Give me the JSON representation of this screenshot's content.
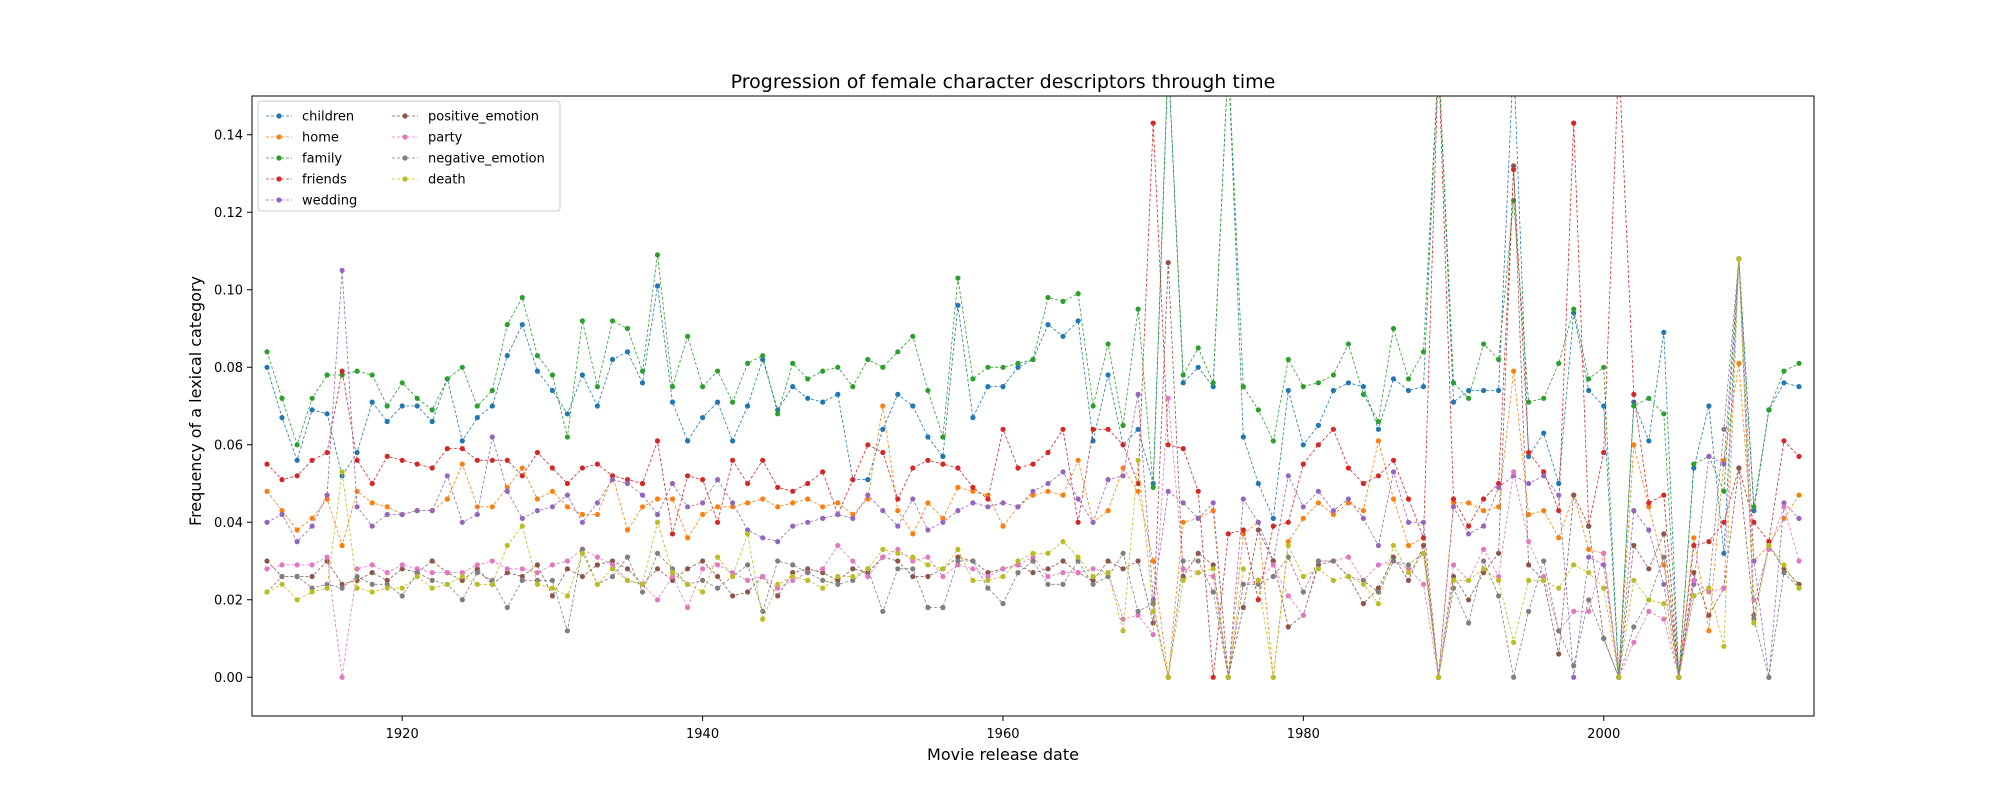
{
  "chart_data": {
    "type": "line",
    "title": "Progression of female character descriptors through time",
    "xlabel": "Movie release date",
    "ylabel": "Frequency of a lexical category",
    "xlim": [
      1910,
      2014
    ],
    "ylim": [
      -0.01,
      0.15
    ],
    "xticks": [
      1920,
      1940,
      1960,
      1980,
      2000
    ],
    "yticks": [
      0.0,
      0.02,
      0.04,
      0.06,
      0.08,
      0.1,
      0.12,
      0.14
    ],
    "ytick_labels": [
      "0.00",
      "0.02",
      "0.04",
      "0.06",
      "0.08",
      "0.10",
      "0.12",
      "0.14"
    ],
    "grid": false,
    "legend_position": "upper-left",
    "x": [
      1911,
      1912,
      1913,
      1914,
      1915,
      1916,
      1917,
      1918,
      1919,
      1920,
      1921,
      1922,
      1923,
      1924,
      1925,
      1926,
      1927,
      1928,
      1929,
      1930,
      1931,
      1932,
      1933,
      1934,
      1935,
      1936,
      1937,
      1938,
      1939,
      1940,
      1941,
      1942,
      1943,
      1944,
      1945,
      1946,
      1947,
      1948,
      1949,
      1950,
      1951,
      1952,
      1953,
      1954,
      1955,
      1956,
      1957,
      1958,
      1959,
      1960,
      1961,
      1962,
      1963,
      1964,
      1965,
      1966,
      1967,
      1968,
      1969,
      1970,
      1971,
      1972,
      1973,
      1974,
      1975,
      1976,
      1977,
      1978,
      1979,
      1980,
      1981,
      1982,
      1983,
      1984,
      1985,
      1986,
      1987,
      1988,
      1989,
      1990,
      1991,
      1992,
      1993,
      1994,
      1995,
      1996,
      1997,
      1998,
      1999,
      2000,
      2001,
      2002,
      2003,
      2004,
      2005,
      2006,
      2007,
      2008,
      2009,
      2010,
      2011,
      2012,
      2013
    ],
    "series": [
      {
        "name": "children",
        "color": "#1f77b4",
        "values": [
          0.08,
          0.067,
          0.056,
          0.069,
          0.068,
          0.052,
          0.058,
          0.071,
          0.066,
          0.07,
          0.07,
          0.066,
          0.077,
          0.061,
          0.067,
          0.07,
          0.083,
          0.091,
          0.079,
          0.074,
          0.068,
          0.078,
          0.07,
          0.082,
          0.084,
          0.076,
          0.101,
          0.071,
          0.061,
          0.067,
          0.071,
          0.061,
          0.07,
          0.082,
          0.069,
          0.075,
          0.072,
          0.071,
          0.073,
          0.051,
          0.051,
          0.064,
          0.073,
          0.07,
          0.062,
          0.057,
          0.096,
          0.067,
          0.075,
          0.075,
          0.08,
          0.082,
          0.091,
          0.088,
          0.092,
          0.061,
          0.078,
          0.06,
          0.064,
          0.05,
          0.16,
          0.076,
          0.08,
          0.075,
          0.16,
          0.062,
          0.05,
          0.041,
          0.074,
          0.06,
          0.065,
          0.074,
          0.076,
          0.075,
          0.064,
          0.077,
          0.074,
          0.075,
          0.16,
          0.071,
          0.074,
          0.074,
          0.074,
          0.16,
          0.057,
          0.063,
          0.05,
          0.094,
          0.074,
          0.07,
          0.0,
          0.071,
          0.061,
          0.089,
          0.0,
          0.054,
          0.07,
          0.032,
          0.108,
          0.043,
          0.069,
          0.076,
          0.075
        ]
      },
      {
        "name": "home",
        "color": "#ff7f0e",
        "values": [
          0.048,
          0.043,
          0.038,
          0.041,
          0.046,
          0.034,
          0.048,
          0.045,
          0.044,
          0.042,
          0.043,
          0.043,
          0.046,
          0.055,
          0.044,
          0.044,
          0.049,
          0.054,
          0.046,
          0.048,
          0.044,
          0.042,
          0.042,
          0.052,
          0.038,
          0.044,
          0.046,
          0.046,
          0.036,
          0.042,
          0.044,
          0.044,
          0.045,
          0.046,
          0.044,
          0.045,
          0.046,
          0.044,
          0.045,
          0.042,
          0.046,
          0.07,
          0.043,
          0.037,
          0.045,
          0.041,
          0.049,
          0.048,
          0.047,
          0.039,
          0.044,
          0.047,
          0.048,
          0.047,
          0.056,
          0.04,
          0.043,
          0.054,
          0.048,
          0.03,
          0.0,
          0.04,
          0.041,
          0.043,
          0.0,
          0.037,
          0.04,
          0.0,
          0.035,
          0.041,
          0.045,
          0.042,
          0.045,
          0.043,
          0.061,
          0.046,
          0.034,
          0.036,
          0.0,
          0.045,
          0.045,
          0.043,
          0.044,
          0.079,
          0.042,
          0.043,
          0.036,
          0.047,
          0.033,
          0.032,
          0.0,
          0.06,
          0.044,
          0.029,
          0.0,
          0.036,
          0.012,
          0.056,
          0.081,
          0.03,
          0.034,
          0.041,
          0.047
        ]
      },
      {
        "name": "family",
        "color": "#2ca02c",
        "values": [
          0.084,
          0.072,
          0.06,
          0.072,
          0.078,
          0.078,
          0.079,
          0.078,
          0.07,
          0.076,
          0.072,
          0.069,
          0.077,
          0.08,
          0.07,
          0.074,
          0.091,
          0.098,
          0.083,
          0.078,
          0.062,
          0.092,
          0.075,
          0.092,
          0.09,
          0.079,
          0.109,
          0.075,
          0.088,
          0.075,
          0.079,
          0.071,
          0.081,
          0.083,
          0.068,
          0.081,
          0.077,
          0.079,
          0.08,
          0.075,
          0.082,
          0.08,
          0.084,
          0.088,
          0.074,
          0.062,
          0.103,
          0.077,
          0.08,
          0.08,
          0.081,
          0.082,
          0.098,
          0.097,
          0.099,
          0.07,
          0.086,
          0.065,
          0.095,
          0.049,
          0.16,
          0.078,
          0.085,
          0.076,
          0.16,
          0.075,
          0.069,
          0.061,
          0.082,
          0.075,
          0.076,
          0.078,
          0.086,
          0.073,
          0.066,
          0.09,
          0.077,
          0.084,
          0.16,
          0.076,
          0.072,
          0.086,
          0.082,
          0.123,
          0.071,
          0.072,
          0.081,
          0.095,
          0.077,
          0.08,
          0.0,
          0.07,
          0.072,
          0.068,
          0.0,
          0.055,
          0.057,
          0.048,
          0.108,
          0.044,
          0.069,
          0.079,
          0.081
        ]
      },
      {
        "name": "friends",
        "color": "#d62728",
        "values": [
          0.055,
          0.051,
          0.052,
          0.056,
          0.058,
          0.079,
          0.056,
          0.05,
          0.057,
          0.056,
          0.055,
          0.054,
          0.059,
          0.059,
          0.056,
          0.056,
          0.056,
          0.052,
          0.058,
          0.054,
          0.05,
          0.054,
          0.055,
          0.052,
          0.051,
          0.05,
          0.061,
          0.037,
          0.052,
          0.051,
          0.04,
          0.056,
          0.05,
          0.056,
          0.049,
          0.048,
          0.05,
          0.053,
          0.042,
          0.051,
          0.06,
          0.058,
          0.046,
          0.054,
          0.056,
          0.055,
          0.054,
          0.049,
          0.046,
          0.064,
          0.054,
          0.055,
          0.058,
          0.064,
          0.04,
          0.064,
          0.064,
          0.06,
          0.05,
          0.143,
          0.06,
          0.059,
          0.048,
          0.0,
          0.037,
          0.038,
          0.02,
          0.039,
          0.04,
          0.055,
          0.06,
          0.064,
          0.054,
          0.05,
          0.052,
          0.056,
          0.046,
          0.036,
          0.16,
          0.046,
          0.039,
          0.046,
          0.05,
          0.131,
          0.058,
          0.053,
          0.043,
          0.143,
          0.039,
          0.058,
          0.16,
          0.073,
          0.045,
          0.047,
          0.0,
          0.034,
          0.035,
          0.04,
          0.054,
          0.04,
          0.035,
          0.061,
          0.057
        ]
      },
      {
        "name": "wedding",
        "color": "#9467bd",
        "values": [
          0.04,
          0.042,
          0.035,
          0.039,
          0.047,
          0.105,
          0.044,
          0.039,
          0.042,
          0.042,
          0.043,
          0.043,
          0.052,
          0.04,
          0.042,
          0.062,
          0.048,
          0.041,
          0.043,
          0.044,
          0.047,
          0.04,
          0.045,
          0.051,
          0.05,
          0.047,
          0.042,
          0.05,
          0.044,
          0.045,
          0.051,
          0.045,
          0.038,
          0.036,
          0.035,
          0.039,
          0.04,
          0.041,
          0.042,
          0.041,
          0.047,
          0.043,
          0.039,
          0.046,
          0.038,
          0.04,
          0.043,
          0.045,
          0.044,
          0.045,
          0.044,
          0.048,
          0.05,
          0.053,
          0.046,
          0.04,
          0.051,
          0.052,
          0.073,
          0.02,
          0.048,
          0.045,
          0.041,
          0.045,
          0.0,
          0.046,
          0.04,
          0.03,
          0.052,
          0.044,
          0.048,
          0.043,
          0.046,
          0.041,
          0.034,
          0.053,
          0.04,
          0.04,
          0.0,
          0.044,
          0.037,
          0.039,
          0.049,
          0.052,
          0.05,
          0.052,
          0.047,
          0.0,
          0.031,
          0.029,
          0.0,
          0.043,
          0.038,
          0.024,
          0.0,
          0.024,
          0.057,
          0.055,
          0.108,
          0.03,
          0.0,
          0.045,
          0.041
        ]
      },
      {
        "name": "positive_emotion",
        "color": "#8c564b",
        "values": [
          0.03,
          0.026,
          0.026,
          0.026,
          0.03,
          0.024,
          0.025,
          0.027,
          0.025,
          0.028,
          0.027,
          0.03,
          0.027,
          0.025,
          0.028,
          0.024,
          0.027,
          0.026,
          0.029,
          0.021,
          0.028,
          0.026,
          0.029,
          0.03,
          0.028,
          0.024,
          0.028,
          0.025,
          0.028,
          0.03,
          0.026,
          0.021,
          0.022,
          0.026,
          0.021,
          0.027,
          0.028,
          0.027,
          0.025,
          0.028,
          0.027,
          0.031,
          0.03,
          0.026,
          0.026,
          0.028,
          0.031,
          0.03,
          0.027,
          0.028,
          0.029,
          0.027,
          0.028,
          0.03,
          0.027,
          0.025,
          0.03,
          0.028,
          0.03,
          0.014,
          0.107,
          0.026,
          0.032,
          0.029,
          0.0,
          0.018,
          0.038,
          0.03,
          0.013,
          0.016,
          0.029,
          0.03,
          0.026,
          0.019,
          0.023,
          0.031,
          0.025,
          0.034,
          0.0,
          0.026,
          0.02,
          0.027,
          0.032,
          0.132,
          0.029,
          0.025,
          0.006,
          0.047,
          0.039,
          0.01,
          0.0,
          0.034,
          0.028,
          0.037,
          0.0,
          0.027,
          0.016,
          0.023,
          0.054,
          0.016,
          0.034,
          0.028,
          0.024
        ]
      },
      {
        "name": "party",
        "color": "#e377c2",
        "values": [
          0.028,
          0.029,
          0.029,
          0.029,
          0.031,
          0.0,
          0.028,
          0.029,
          0.027,
          0.029,
          0.028,
          0.027,
          0.027,
          0.027,
          0.029,
          0.03,
          0.028,
          0.028,
          0.027,
          0.029,
          0.03,
          0.033,
          0.031,
          0.029,
          0.025,
          0.024,
          0.02,
          0.026,
          0.018,
          0.028,
          0.029,
          0.027,
          0.025,
          0.026,
          0.023,
          0.025,
          0.027,
          0.028,
          0.034,
          0.03,
          0.026,
          0.031,
          0.033,
          0.03,
          0.031,
          0.026,
          0.029,
          0.028,
          0.026,
          0.028,
          0.029,
          0.031,
          0.026,
          0.027,
          0.027,
          0.028,
          0.027,
          0.015,
          0.016,
          0.011,
          0.072,
          0.028,
          0.027,
          0.026,
          0.0,
          0.024,
          0.025,
          0.029,
          0.021,
          0.016,
          0.03,
          0.03,
          0.031,
          0.025,
          0.029,
          0.03,
          0.028,
          0.024,
          0.0,
          0.029,
          0.025,
          0.033,
          0.026,
          0.053,
          0.035,
          0.026,
          0.012,
          0.017,
          0.017,
          0.032,
          0.0,
          0.009,
          0.017,
          0.015,
          0.0,
          0.025,
          0.022,
          0.023,
          0.108,
          0.02,
          0.033,
          0.044,
          0.03
        ]
      },
      {
        "name": "negative_emotion",
        "color": "#7f7f7f",
        "values": [
          0.022,
          0.026,
          0.026,
          0.023,
          0.024,
          0.023,
          0.026,
          0.024,
          0.024,
          0.021,
          0.027,
          0.025,
          0.024,
          0.02,
          0.027,
          0.025,
          0.018,
          0.025,
          0.025,
          0.025,
          0.012,
          0.033,
          0.024,
          0.026,
          0.031,
          0.022,
          0.032,
          0.028,
          0.024,
          0.025,
          0.023,
          0.026,
          0.029,
          0.017,
          0.03,
          0.029,
          0.027,
          0.025,
          0.024,
          0.025,
          0.028,
          0.017,
          0.028,
          0.028,
          0.018,
          0.018,
          0.03,
          0.03,
          0.023,
          0.019,
          0.027,
          0.03,
          0.024,
          0.024,
          0.03,
          0.024,
          0.026,
          0.032,
          0.017,
          0.019,
          0.0,
          0.03,
          0.03,
          0.022,
          0.0,
          0.024,
          0.024,
          0.026,
          0.031,
          0.022,
          0.03,
          0.03,
          0.026,
          0.025,
          0.022,
          0.03,
          0.029,
          0.032,
          0.0,
          0.023,
          0.014,
          0.03,
          0.021,
          0.0,
          0.017,
          0.03,
          0.012,
          0.003,
          0.02,
          0.01,
          0.0,
          0.013,
          0.02,
          0.031,
          0.0,
          0.021,
          0.023,
          0.064,
          0.108,
          0.015,
          0.0,
          0.027,
          0.023
        ]
      },
      {
        "name": "death",
        "color": "#bcbd22",
        "values": [
          0.022,
          0.024,
          0.02,
          0.022,
          0.023,
          0.053,
          0.023,
          0.022,
          0.023,
          0.023,
          0.026,
          0.023,
          0.024,
          0.026,
          0.024,
          0.024,
          0.034,
          0.039,
          0.024,
          0.023,
          0.021,
          0.032,
          0.024,
          0.028,
          0.025,
          0.024,
          0.04,
          0.027,
          0.024,
          0.022,
          0.031,
          0.026,
          0.037,
          0.015,
          0.024,
          0.026,
          0.025,
          0.023,
          0.026,
          0.026,
          0.028,
          0.033,
          0.032,
          0.031,
          0.029,
          0.028,
          0.033,
          0.025,
          0.025,
          0.026,
          0.03,
          0.032,
          0.032,
          0.035,
          0.031,
          0.026,
          0.027,
          0.012,
          0.056,
          0.017,
          0.0,
          0.025,
          0.027,
          0.028,
          0.0,
          0.028,
          0.025,
          0.0,
          0.034,
          0.026,
          0.028,
          0.025,
          0.026,
          0.024,
          0.019,
          0.034,
          0.027,
          0.032,
          0.0,
          0.025,
          0.025,
          0.028,
          0.025,
          0.009,
          0.025,
          0.025,
          0.023,
          0.029,
          0.027,
          0.023,
          0.0,
          0.025,
          0.02,
          0.019,
          0.0,
          0.021,
          0.023,
          0.008,
          0.108,
          0.014,
          0.034,
          0.029,
          0.023
        ]
      }
    ]
  }
}
